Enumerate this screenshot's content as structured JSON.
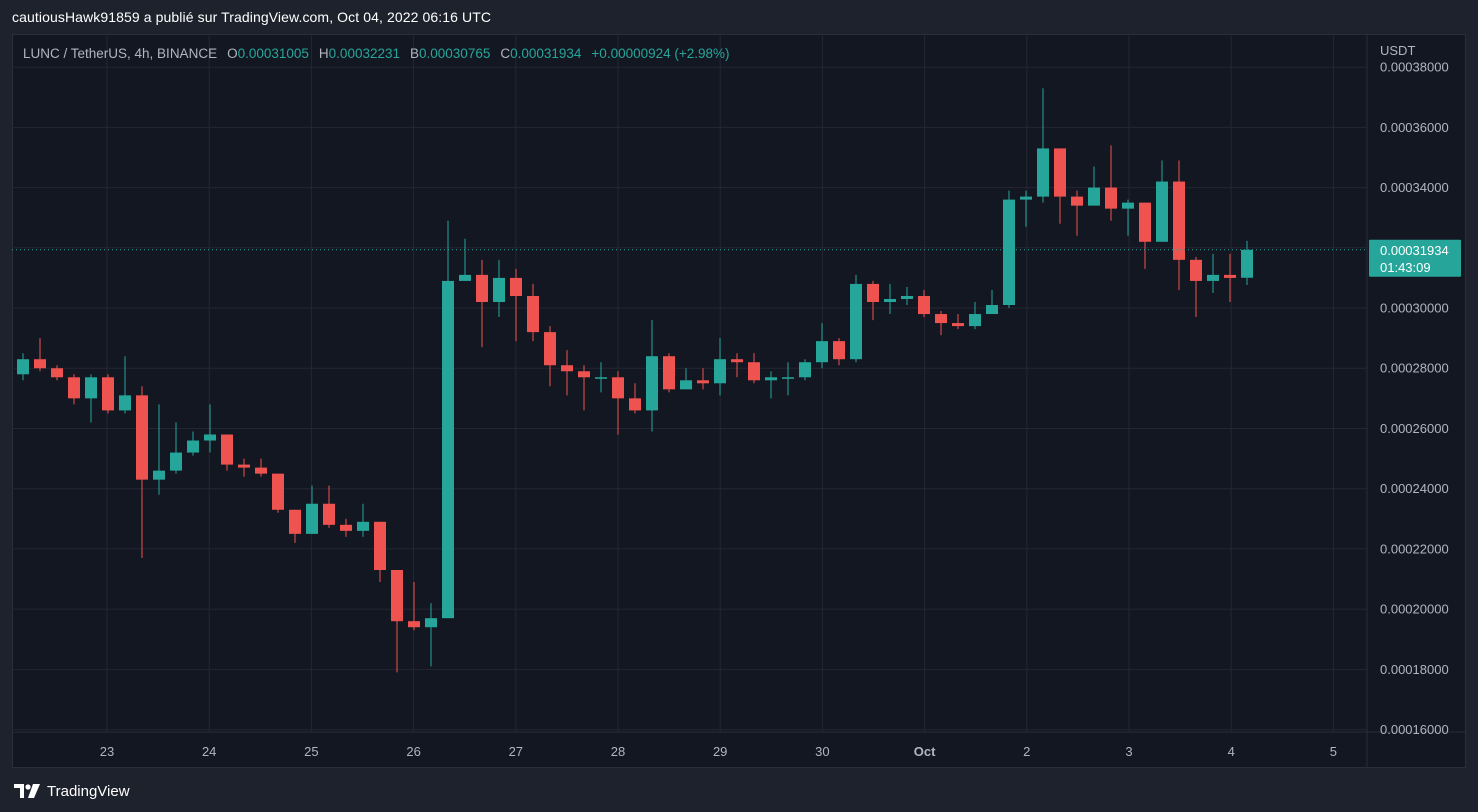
{
  "header": {
    "publisher_line": "cautiousHawk91859 a publié sur TradingView.com, Oct 04, 2022 06:16 UTC"
  },
  "legend": {
    "symbol": "LUNC / TetherUS, 4h, BINANCE",
    "o_label": "O",
    "o_value": "0.00031005",
    "h_label": "H",
    "h_value": "0.00032231",
    "l_label": "B",
    "l_value": "0.00030765",
    "c_label": "C",
    "c_value": "0.00031934",
    "change": "+0.00000924 (+2.98%)"
  },
  "price_axis": {
    "currency": "USDT",
    "tick_labels": [
      "0.00038000",
      "0.00036000",
      "0.00034000",
      "0.00032000",
      "0.00030000",
      "0.00028000",
      "0.00026000",
      "0.00024000",
      "0.00022000",
      "0.00020000",
      "0.00018000",
      "0.00016000"
    ],
    "last_price_label": "0.00031934",
    "countdown": "01:43:09"
  },
  "footer": {
    "brand": "TradingView"
  },
  "colors": {
    "up": "#26a69a",
    "down": "#ef5350",
    "background": "#131722",
    "grid": "#242733",
    "axis_text": "#b2b5be"
  },
  "chart_data": {
    "type": "candlestick",
    "symbol": "LUNC / TetherUS",
    "interval": "4h",
    "exchange": "BINANCE",
    "x_tick_labels": [
      "23",
      "24",
      "25",
      "26",
      "27",
      "28",
      "29",
      "30",
      "Oct",
      "2",
      "3",
      "4",
      "5"
    ],
    "ylim": [
      0.00016,
      0.00038
    ],
    "last_price": 0.00031934,
    "grid": true,
    "candles": [
      [
        0.000278,
        0.000283,
        0.000276,
        0.000285
      ],
      [
        0.000283,
        0.00028,
        0.000279,
        0.00029
      ],
      [
        0.00028,
        0.000277,
        0.000276,
        0.000281
      ],
      [
        0.000277,
        0.00027,
        0.000268,
        0.000278
      ],
      [
        0.00027,
        0.000277,
        0.000262,
        0.000278
      ],
      [
        0.000277,
        0.000266,
        0.000265,
        0.000278
      ],
      [
        0.000266,
        0.000271,
        0.000265,
        0.000284
      ],
      [
        0.000271,
        0.000243,
        0.000217,
        0.000274
      ],
      [
        0.000243,
        0.000246,
        0.000238,
        0.000268
      ],
      [
        0.000246,
        0.000252,
        0.000245,
        0.000262
      ],
      [
        0.000252,
        0.000256,
        0.000251,
        0.000259
      ],
      [
        0.000256,
        0.000258,
        0.000252,
        0.000268
      ],
      [
        0.000258,
        0.000248,
        0.000246,
        0.000258
      ],
      [
        0.000248,
        0.000247,
        0.000244,
        0.00025
      ],
      [
        0.000247,
        0.000245,
        0.000244,
        0.00025
      ],
      [
        0.000245,
        0.000233,
        0.000232,
        0.000245
      ],
      [
        0.000233,
        0.000225,
        0.000222,
        0.000233
      ],
      [
        0.000225,
        0.000235,
        0.000225,
        0.000241
      ],
      [
        0.000235,
        0.000228,
        0.000227,
        0.000241
      ],
      [
        0.000228,
        0.000226,
        0.000224,
        0.00023
      ],
      [
        0.000226,
        0.000229,
        0.000224,
        0.000235
      ],
      [
        0.000229,
        0.000213,
        0.000209,
        0.000229
      ],
      [
        0.000213,
        0.000196,
        0.000179,
        0.000213
      ],
      [
        0.000196,
        0.000194,
        0.000193,
        0.000209
      ],
      [
        0.000194,
        0.000197,
        0.000181,
        0.000202
      ],
      [
        0.000197,
        0.000309,
        0.000197,
        0.000329
      ],
      [
        0.000309,
        0.000311,
        0.000309,
        0.000323
      ],
      [
        0.000311,
        0.000302,
        0.000287,
        0.000316
      ],
      [
        0.000302,
        0.00031,
        0.000297,
        0.000316
      ],
      [
        0.00031,
        0.000304,
        0.000289,
        0.000313
      ],
      [
        0.000304,
        0.000292,
        0.000289,
        0.000308
      ],
      [
        0.000292,
        0.000281,
        0.000274,
        0.000294
      ],
      [
        0.000281,
        0.000279,
        0.000271,
        0.000286
      ],
      [
        0.000279,
        0.000277,
        0.000266,
        0.000281
      ],
      [
        0.000277,
        0.000277,
        0.000272,
        0.000282
      ],
      [
        0.000277,
        0.00027,
        0.000258,
        0.000279
      ],
      [
        0.00027,
        0.000266,
        0.000265,
        0.000275
      ],
      [
        0.000266,
        0.000284,
        0.000259,
        0.000296
      ],
      [
        0.000284,
        0.000273,
        0.000272,
        0.000285
      ],
      [
        0.000273,
        0.000276,
        0.000273,
        0.00028
      ],
      [
        0.000276,
        0.000275,
        0.000273,
        0.00028
      ],
      [
        0.000275,
        0.000283,
        0.000271,
        0.00029
      ],
      [
        0.000283,
        0.000282,
        0.000277,
        0.000285
      ],
      [
        0.000282,
        0.000276,
        0.000275,
        0.000285
      ],
      [
        0.000276,
        0.000277,
        0.00027,
        0.000279
      ],
      [
        0.000277,
        0.000277,
        0.000271,
        0.000282
      ],
      [
        0.000277,
        0.000282,
        0.000276,
        0.000283
      ],
      [
        0.000282,
        0.000289,
        0.00028,
        0.000295
      ],
      [
        0.000289,
        0.000283,
        0.000281,
        0.00029
      ],
      [
        0.000283,
        0.000308,
        0.000282,
        0.000311
      ],
      [
        0.000308,
        0.000302,
        0.000296,
        0.000309
      ],
      [
        0.000302,
        0.000303,
        0.000298,
        0.000308
      ],
      [
        0.000303,
        0.000304,
        0.000301,
        0.000307
      ],
      [
        0.000304,
        0.000298,
        0.000297,
        0.000306
      ],
      [
        0.000298,
        0.000295,
        0.000291,
        0.000299
      ],
      [
        0.000295,
        0.000294,
        0.000293,
        0.000298
      ],
      [
        0.000294,
        0.000298,
        0.000293,
        0.000302
      ],
      [
        0.000298,
        0.000301,
        0.000298,
        0.000306
      ],
      [
        0.000301,
        0.000336,
        0.0003,
        0.000339
      ],
      [
        0.000336,
        0.000337,
        0.000327,
        0.000339
      ],
      [
        0.000337,
        0.000353,
        0.000335,
        0.000373
      ],
      [
        0.000353,
        0.000337,
        0.000328,
        0.000353
      ],
      [
        0.000337,
        0.000334,
        0.000324,
        0.000339
      ],
      [
        0.000334,
        0.00034,
        0.000334,
        0.000347
      ],
      [
        0.00034,
        0.000333,
        0.000329,
        0.000354
      ],
      [
        0.000333,
        0.000335,
        0.000324,
        0.000336
      ],
      [
        0.000335,
        0.000322,
        0.000313,
        0.000335
      ],
      [
        0.000322,
        0.000342,
        0.000322,
        0.000349
      ],
      [
        0.000342,
        0.000316,
        0.000306,
        0.000349
      ],
      [
        0.000316,
        0.000309,
        0.000297,
        0.000317
      ],
      [
        0.000309,
        0.000311,
        0.000305,
        0.000318
      ],
      [
        0.000311,
        0.00031,
        0.000302,
        0.000318
      ],
      [
        0.00031005,
        0.00031934,
        0.00030765,
        0.00032231
      ]
    ]
  }
}
